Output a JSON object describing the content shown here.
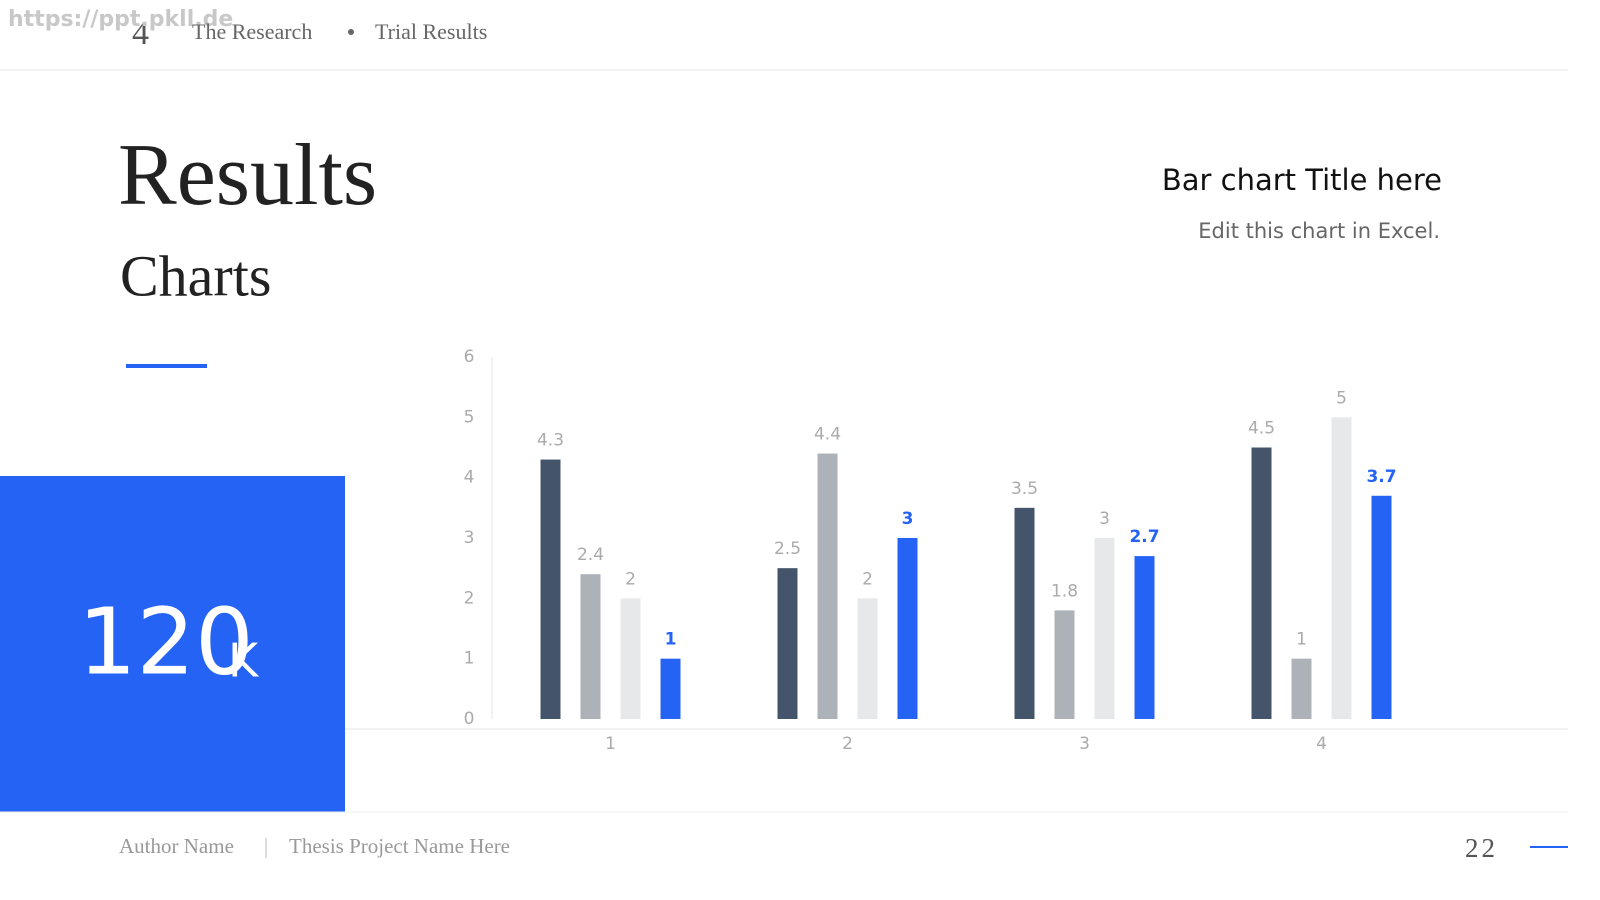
{
  "watermark": "https://ppt.pkll.de",
  "header": {
    "section_number": "4",
    "section": "The Research",
    "page_title": "Trial Results"
  },
  "title": "Results",
  "subtitle": "Charts",
  "stat": {
    "number": "120",
    "unit": "K"
  },
  "chart_data": {
    "type": "bar",
    "title": "Bar chart Title here",
    "subtitle": "Edit this chart in Excel.",
    "categories": [
      "1",
      "2",
      "3",
      "4"
    ],
    "series": [
      {
        "color": "#44546a",
        "values": [
          4.3,
          2.5,
          3.5,
          4.5
        ]
      },
      {
        "color": "#adb1b8",
        "values": [
          2.4,
          4.4,
          1.8,
          1
        ]
      },
      {
        "color": "#e7e8ea",
        "values": [
          2,
          2,
          3,
          5
        ]
      },
      {
        "color": "#2563f5",
        "values": [
          1,
          3,
          2.7,
          3.7
        ]
      }
    ],
    "ylim": [
      0,
      6
    ],
    "yticks": [
      0,
      1,
      2,
      3,
      4,
      5,
      6
    ]
  },
  "footer": {
    "author": "Author Name",
    "project": "Thesis Project Name Here",
    "page_number": "22"
  }
}
